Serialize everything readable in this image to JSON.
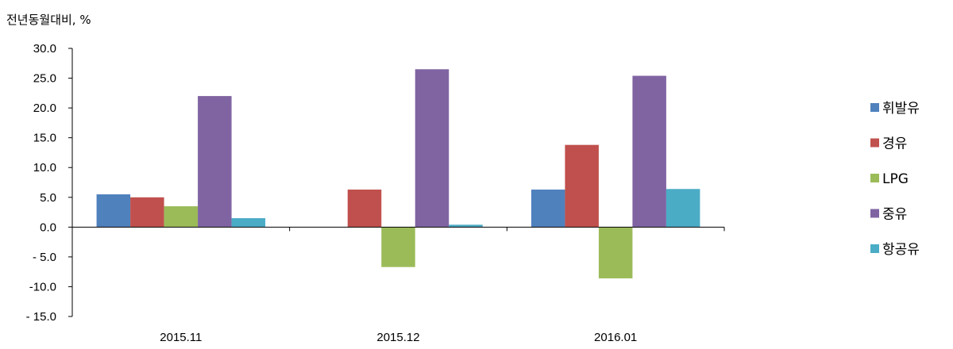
{
  "chart_data": {
    "type": "bar",
    "ylabel": "전년동월대비, %",
    "xlabel": "",
    "title": "",
    "categories": [
      "2015.11",
      "2015.12",
      "2016.01"
    ],
    "ylim": [
      -15,
      30
    ],
    "ytick_values": [
      30,
      25,
      20,
      15,
      10,
      5,
      0,
      -5,
      -10,
      -15
    ],
    "ytick_labels": [
      "30.0",
      "25.0",
      "20.0",
      "15.0",
      "10.0",
      "5.0",
      "0.0",
      "- 5.0",
      "-10.0",
      "- 15.0"
    ],
    "legend_position": "right",
    "grid": false,
    "series": [
      {
        "name": "휘발유",
        "color": "#4F81BD",
        "values": [
          5.5,
          null,
          6.3
        ]
      },
      {
        "name": "경유",
        "color": "#C0504D",
        "values": [
          5.0,
          6.3,
          13.8
        ]
      },
      {
        "name": "LPG",
        "color": "#9BBB59",
        "values": [
          3.5,
          -6.7,
          -8.6
        ]
      },
      {
        "name": "중유",
        "color": "#8064A2",
        "values": [
          22.0,
          26.5,
          25.4
        ]
      },
      {
        "name": "항공유",
        "color": "#4BACC6",
        "values": [
          1.5,
          0.4,
          6.4
        ]
      }
    ]
  }
}
